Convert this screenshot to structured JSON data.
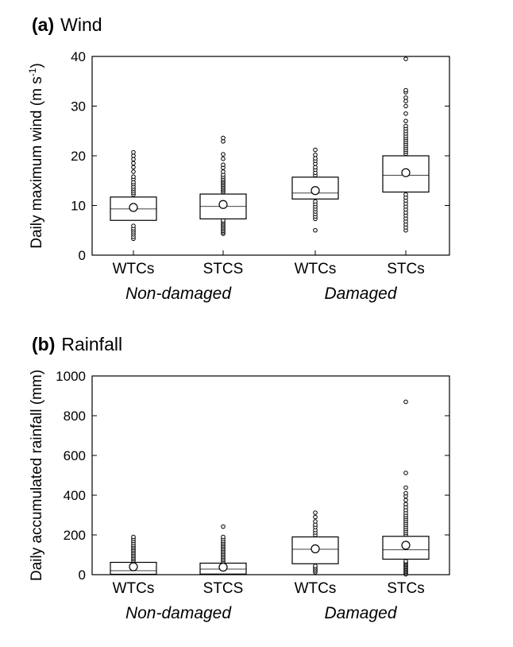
{
  "chart_data": [
    {
      "type": "box",
      "panel_letter": "(a)",
      "title": "Wind",
      "ylabel": "Daily maximum wind (m s",
      "ylabel_sup": "-1",
      "ylabel_close": ")",
      "ylim": [
        0,
        40
      ],
      "yticks": [
        "0",
        "10",
        "20",
        "30",
        "40"
      ],
      "categories": [
        "WTCs",
        "STCS",
        "WTCs",
        "STCs"
      ],
      "groups": [
        {
          "label": "Non-damaged",
          "members": [
            0,
            1
          ]
        },
        {
          "label": "Damaged",
          "members": [
            2,
            3
          ]
        }
      ],
      "boxes": [
        {
          "q1": 7.0,
          "median": 9.3,
          "q3": 11.7,
          "mean": 9.6,
          "outliers": [
            3.3,
            3.7,
            4.2,
            4.6,
            5.0,
            5.4,
            5.9,
            12.2,
            12.6,
            13.0,
            13.4,
            13.8,
            14.3,
            14.7,
            15.3,
            15.8,
            16.8,
            17.7,
            18.5,
            19.3,
            20.0,
            20.7
          ]
        },
        {
          "q1": 7.3,
          "median": 9.8,
          "q3": 12.3,
          "mean": 10.2,
          "outliers": [
            4.3,
            4.6,
            4.9,
            5.2,
            5.5,
            5.8,
            6.1,
            6.4,
            6.7,
            7.0,
            12.7,
            13.0,
            13.3,
            13.6,
            13.9,
            14.2,
            14.5,
            14.8,
            15.1,
            15.4,
            15.8,
            16.2,
            16.8,
            17.6,
            18.2,
            19.4,
            20.3,
            22.9,
            23.6
          ]
        },
        {
          "q1": 11.3,
          "median": 12.5,
          "q3": 15.7,
          "mean": 13.0,
          "outliers": [
            5.0,
            7.3,
            7.8,
            8.3,
            8.8,
            9.3,
            9.8,
            10.3,
            10.8,
            16.1,
            16.6,
            17.2,
            17.7,
            18.4,
            19.0,
            19.5,
            20.2,
            21.2
          ]
        },
        {
          "q1": 12.7,
          "median": 16.1,
          "q3": 20.0,
          "mean": 16.6,
          "outliers": [
            5.0,
            5.6,
            6.2,
            6.8,
            7.4,
            8.0,
            8.6,
            9.2,
            9.8,
            10.4,
            11.0,
            11.6,
            12.2,
            20.4,
            20.8,
            21.2,
            21.6,
            22.0,
            22.4,
            22.8,
            23.2,
            23.6,
            24.0,
            24.5,
            25.0,
            25.5,
            26.0,
            27.0,
            28.5,
            30.0,
            31.0,
            31.7,
            32.8,
            33.2,
            39.5
          ]
        }
      ]
    },
    {
      "type": "box",
      "panel_letter": "(b)",
      "title": "Rainfall",
      "ylabel": "Daily accumulated rainfall (mm)",
      "ylim": [
        0,
        1000
      ],
      "yticks": [
        "0",
        "200",
        "400",
        "600",
        "800",
        "1000"
      ],
      "categories": [
        "WTCs",
        "STCS",
        "WTCs",
        "STCs"
      ],
      "groups": [
        {
          "label": "Non-damaged",
          "members": [
            0,
            1
          ]
        },
        {
          "label": "Damaged",
          "members": [
            2,
            3
          ]
        }
      ],
      "boxes": [
        {
          "q1": 2,
          "median": 20,
          "q3": 62,
          "mean": 40,
          "outliers": [
            70,
            78,
            86,
            94,
            102,
            110,
            118,
            126,
            134,
            142,
            150,
            160,
            170,
            180,
            190
          ]
        },
        {
          "q1": 3,
          "median": 28,
          "q3": 58,
          "mean": 38,
          "outliers": [
            66,
            74,
            82,
            90,
            98,
            106,
            114,
            122,
            130,
            138,
            146,
            154,
            162,
            170,
            180,
            190,
            242
          ]
        },
        {
          "q1": 55,
          "median": 128,
          "q3": 190,
          "mean": 130,
          "outliers": [
            12,
            20,
            28,
            36,
            44,
            200,
            212,
            225,
            240,
            252,
            268,
            290,
            312
          ]
        },
        {
          "q1": 78,
          "median": 125,
          "q3": 193,
          "mean": 148,
          "outliers": [
            2,
            8,
            14,
            20,
            26,
            32,
            38,
            44,
            50,
            56,
            62,
            68,
            200,
            210,
            220,
            230,
            240,
            250,
            260,
            270,
            280,
            290,
            300,
            312,
            325,
            340,
            355,
            375,
            395,
            410,
            438,
            512,
            870
          ]
        }
      ]
    }
  ]
}
